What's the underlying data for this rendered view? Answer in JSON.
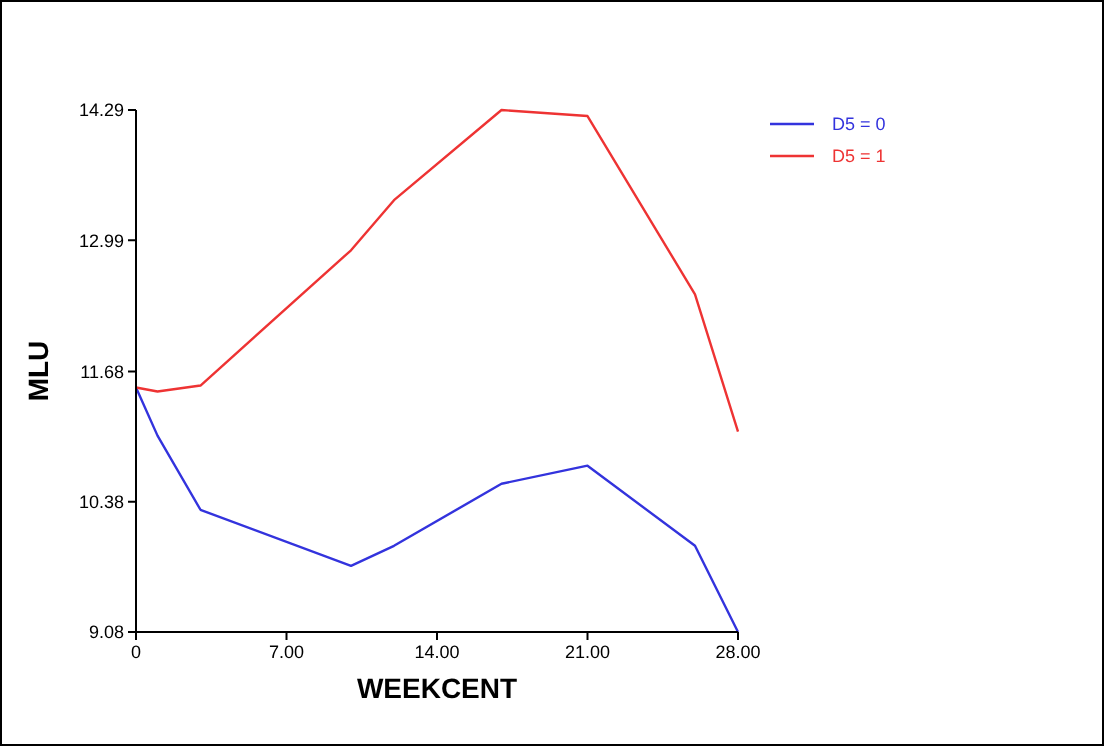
{
  "chart_data": {
    "type": "line",
    "xlabel": "WEEKCENT",
    "ylabel": "MLU",
    "xlim": [
      0,
      28
    ],
    "xticks": [
      {
        "value": 0,
        "label": "0"
      },
      {
        "value": 7,
        "label": "7.00"
      },
      {
        "value": 14,
        "label": "14.00"
      },
      {
        "value": 21,
        "label": "21.00"
      },
      {
        "value": 28,
        "label": "28.00"
      }
    ],
    "ylim": [
      9.08,
      14.29
    ],
    "yticks": [
      9.08,
      10.38,
      11.68,
      12.99,
      14.29
    ],
    "x": [
      0,
      1,
      3,
      10,
      12,
      17,
      21,
      26,
      28
    ],
    "series": [
      {
        "name": "D5 = 0",
        "color": "#3333dd",
        "values": [
          11.52,
          11.04,
          10.3,
          9.74,
          9.94,
          10.56,
          10.74,
          9.94,
          9.08
        ]
      },
      {
        "name": "D5 = 1",
        "color": "#ee3333",
        "values": [
          11.52,
          11.48,
          11.54,
          12.89,
          13.39,
          14.29,
          14.23,
          12.45,
          11.08
        ]
      }
    ],
    "legend": "top right",
    "grid": false,
    "marker": "none",
    "line_style": "solid"
  }
}
